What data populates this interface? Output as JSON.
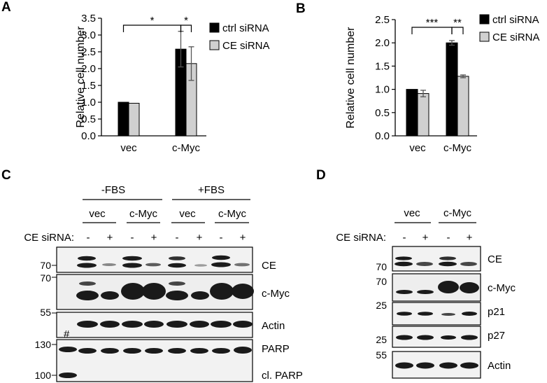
{
  "panels": {
    "A": "A",
    "B": "B",
    "C": "C",
    "D": "D"
  },
  "chart_data": [
    {
      "type": "bar",
      "panel": "A",
      "ylabel": "Relative cell number",
      "categories": [
        "vec",
        "c-Myc"
      ],
      "ylim": [
        0,
        3.5
      ],
      "yticks": [
        "0.0",
        "0.5",
        "1.0",
        "1.5",
        "2.0",
        "2.5",
        "3.0",
        "3.5"
      ],
      "series": [
        {
          "name": "ctrl siRNA",
          "color": "#000000",
          "values": [
            1.0,
            2.58
          ],
          "errors": [
            0.0,
            0.53
          ]
        },
        {
          "name": "CE siRNA",
          "color": "#d0d0d0",
          "values": [
            0.97,
            2.15
          ],
          "errors": [
            0.0,
            0.5
          ]
        }
      ],
      "significance": [
        "*",
        "*"
      ],
      "legend": "top-right"
    },
    {
      "type": "bar",
      "panel": "B",
      "ylabel": "Relative cell number",
      "categories": [
        "vec",
        "c-Myc"
      ],
      "ylim": [
        0,
        2.5
      ],
      "yticks": [
        "0.0",
        "0.5",
        "1.0",
        "1.5",
        "2.0",
        "2.5"
      ],
      "series": [
        {
          "name": "ctrl siRNA",
          "color": "#000000",
          "values": [
            1.0,
            2.0
          ],
          "errors": [
            0.0,
            0.05
          ]
        },
        {
          "name": "CE siRNA",
          "color": "#d0d0d0",
          "values": [
            0.91,
            1.28
          ],
          "errors": [
            0.07,
            0.03
          ]
        }
      ],
      "significance": [
        "***",
        "**"
      ],
      "legend": "top-right"
    }
  ],
  "blotC": {
    "groups": [
      "-FBS",
      "+FBS"
    ],
    "subgroups": [
      "vec",
      "c-Myc",
      "vec",
      "c-Myc"
    ],
    "sirna_label": "CE siRNA:",
    "sirna_signs": [
      "-",
      "+",
      "-",
      "+",
      "-",
      "+",
      "-",
      "+"
    ],
    "row_labels": [
      "CE",
      "c-Myc",
      "Actin",
      "PARP",
      "cl. PARP"
    ],
    "markers": [
      "70",
      "70",
      "55",
      "130",
      "100"
    ],
    "hash": "#"
  },
  "blotD": {
    "subgroups": [
      "vec",
      "c-Myc"
    ],
    "sirna_label": "CE siRNA:",
    "sirna_signs": [
      "-",
      "+",
      "-",
      "+"
    ],
    "row_labels": [
      "CE",
      "c-Myc",
      "p21",
      "p27",
      "Actin"
    ],
    "markers": [
      "70",
      "70",
      "25",
      "25",
      "55"
    ]
  }
}
